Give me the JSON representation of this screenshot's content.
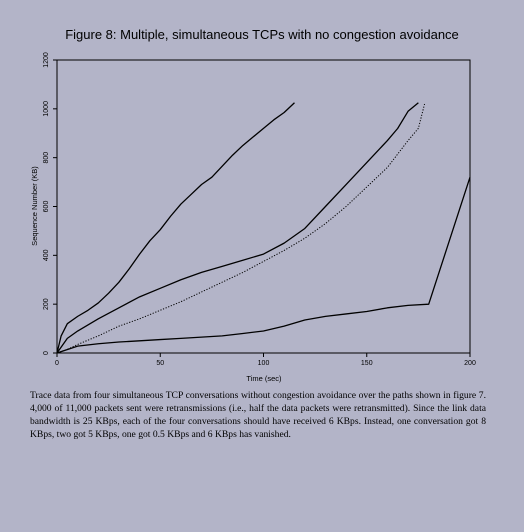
{
  "figure": {
    "title": "Figure 8: Multiple, simultaneous TCPs with no congestion avoidance",
    "caption": "Trace data from four simultaneous TCP conversations without congestion avoidance over the paths shown in figure 7. 4,000 of 11,000 packets sent were retransmissions (i.e., half the data packets were retransmitted). Since the link data bandwidth is 25 KBps, each of the four conversations should have received 6 KBps. Instead, one conversation got 8 KBps, two got 5 KBps, one got 0.5 KBps and 6 KBps has vanished."
  },
  "chart_data": {
    "type": "line",
    "title": "Figure 8: Multiple, simultaneous TCPs with no congestion avoidance",
    "xlabel": "Time (sec)",
    "ylabel": "Sequence Number (KB)",
    "xlim": [
      0,
      200
    ],
    "ylim": [
      0,
      1200
    ],
    "xticks": [
      0,
      50,
      100,
      150,
      200
    ],
    "yticks": [
      0,
      200,
      400,
      600,
      800,
      1000,
      1200
    ],
    "grid": false,
    "legend": "none",
    "series": [
      {
        "style": "solid",
        "x": [
          0,
          2,
          5,
          10,
          15,
          20,
          25,
          30,
          35,
          40,
          45,
          50,
          55,
          60,
          65,
          70,
          75,
          80,
          85,
          90,
          95,
          100,
          105,
          110,
          115
        ],
        "y": [
          0,
          70,
          120,
          150,
          175,
          205,
          245,
          290,
          345,
          405,
          460,
          505,
          560,
          610,
          650,
          690,
          720,
          765,
          810,
          850,
          885,
          920,
          955,
          985,
          1025
        ]
      },
      {
        "style": "solid",
        "x": [
          0,
          5,
          10,
          15,
          20,
          30,
          40,
          50,
          60,
          70,
          80,
          90,
          100,
          110,
          120,
          130,
          140,
          150,
          160,
          165,
          170,
          175
        ],
        "y": [
          0,
          60,
          90,
          115,
          140,
          185,
          230,
          265,
          300,
          330,
          355,
          380,
          405,
          450,
          510,
          600,
          690,
          780,
          870,
          920,
          990,
          1025
        ]
      },
      {
        "style": "dotted",
        "x": [
          0,
          5,
          10,
          20,
          30,
          40,
          50,
          60,
          70,
          80,
          90,
          100,
          110,
          120,
          130,
          140,
          150,
          160,
          170,
          175,
          178
        ],
        "y": [
          0,
          15,
          35,
          70,
          110,
          140,
          175,
          210,
          250,
          290,
          330,
          375,
          420,
          470,
          530,
          600,
          680,
          760,
          870,
          920,
          1020
        ]
      },
      {
        "style": "solid",
        "x": [
          0,
          10,
          20,
          30,
          40,
          50,
          60,
          70,
          80,
          90,
          100,
          110,
          120,
          130,
          140,
          150,
          160,
          170,
          180,
          190,
          200
        ],
        "y": [
          0,
          28,
          38,
          45,
          50,
          55,
          60,
          65,
          70,
          80,
          90,
          110,
          135,
          150,
          160,
          170,
          185,
          195,
          200,
          460,
          720
        ]
      }
    ]
  }
}
